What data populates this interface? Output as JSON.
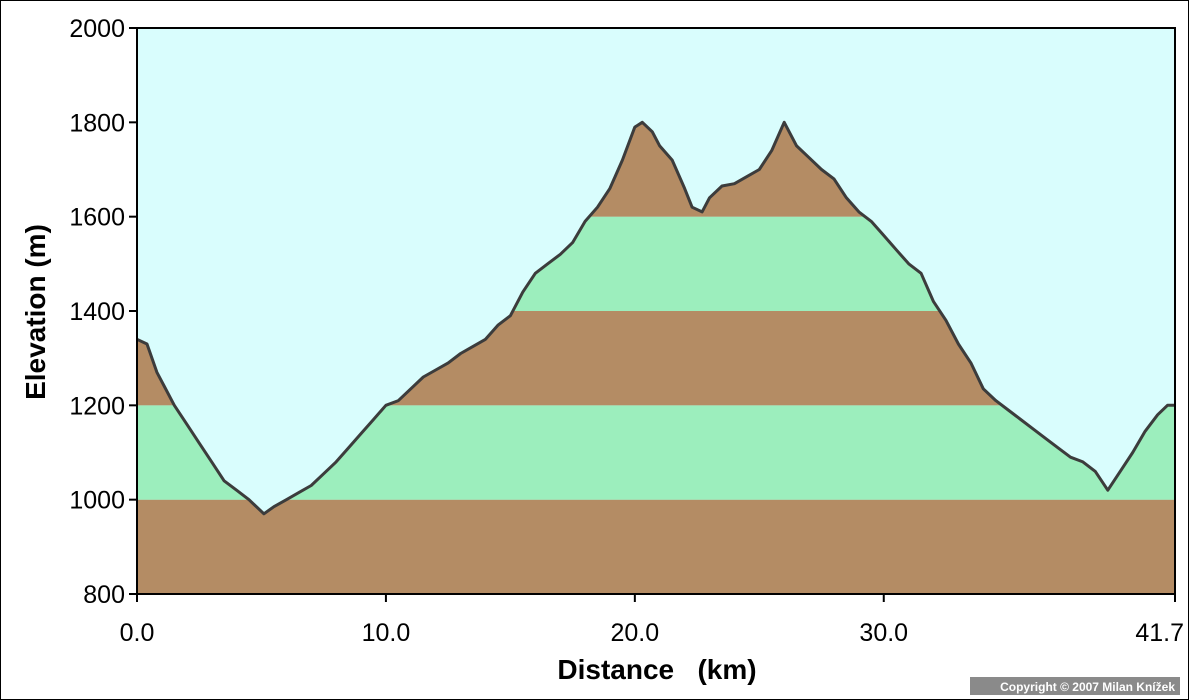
{
  "chart_data": {
    "type": "area",
    "xlabel": "Distance   (km)",
    "ylabel": "Elevation (m)",
    "xlim": [
      0,
      41.7
    ],
    "ylim": [
      800,
      2000
    ],
    "x_ticks": [
      "0.0",
      "10.0",
      "20.0",
      "30.0",
      "41.7"
    ],
    "x_tick_values": [
      0,
      10,
      20,
      30,
      41.7
    ],
    "y_ticks": [
      "800",
      "1000",
      "1200",
      "1400",
      "1600",
      "1800",
      "2000"
    ],
    "y_tick_values": [
      800,
      1000,
      1200,
      1400,
      1600,
      1800,
      2000
    ],
    "band_step": 200,
    "colors": {
      "sky": "#d9fdfd",
      "brown": "#b48c64",
      "green": "#9ceebd",
      "line": "#3c3c3c"
    },
    "series": [
      {
        "x": [
          0,
          0.4,
          0.8,
          1.1,
          1.5,
          2.0,
          2.5,
          3.0,
          3.5,
          4.0,
          4.5,
          5.1,
          5.5,
          6.0,
          6.5,
          7.0,
          7.5,
          8.0,
          8.5,
          9.0,
          9.5,
          10.0,
          10.5,
          11.0,
          11.5,
          12.0,
          12.5,
          13.0,
          13.5,
          14.0,
          14.5,
          15.0,
          15.5,
          16.0,
          16.5,
          17.0,
          17.5,
          18.0,
          18.5,
          19.0,
          19.5,
          20.0,
          20.3,
          20.7,
          21.0,
          21.5,
          22.0,
          22.3,
          22.7,
          23.0,
          23.5,
          24.0,
          24.5,
          25.0,
          25.5,
          26.0,
          26.5,
          27.0,
          27.5,
          28.0,
          28.5,
          29.0,
          29.5,
          30.0,
          30.5,
          31.0,
          31.5,
          32.0,
          32.5,
          33.0,
          33.5,
          34.0,
          34.5,
          35.0,
          35.5,
          36.0,
          36.5,
          37.0,
          37.5,
          38.0,
          38.5,
          39.0,
          39.5,
          40.0,
          40.5,
          41.0,
          41.4,
          41.7
        ],
        "y": [
          1340,
          1330,
          1270,
          1240,
          1200,
          1160,
          1120,
          1080,
          1040,
          1020,
          1000,
          970,
          985,
          1000,
          1015,
          1030,
          1055,
          1080,
          1110,
          1140,
          1170,
          1200,
          1210,
          1235,
          1260,
          1275,
          1290,
          1310,
          1325,
          1340,
          1370,
          1390,
          1440,
          1480,
          1500,
          1520,
          1545,
          1590,
          1620,
          1660,
          1720,
          1790,
          1800,
          1780,
          1750,
          1720,
          1660,
          1620,
          1610,
          1640,
          1665,
          1670,
          1685,
          1700,
          1740,
          1800,
          1750,
          1725,
          1700,
          1680,
          1640,
          1610,
          1590,
          1560,
          1530,
          1500,
          1480,
          1420,
          1380,
          1330,
          1290,
          1235,
          1210,
          1190,
          1170,
          1150,
          1130,
          1110,
          1090,
          1080,
          1060,
          1020,
          1060,
          1100,
          1145,
          1180,
          1200,
          1200
        ]
      }
    ]
  },
  "copyright": "Copyright © 2007 Milan Knížek"
}
